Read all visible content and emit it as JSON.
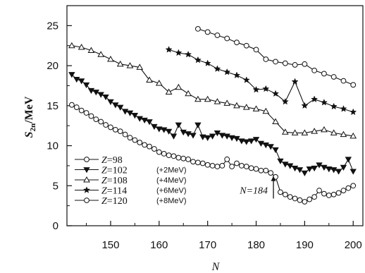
{
  "chart_data": {
    "type": "line",
    "xlabel": "N",
    "ylabel": "S2n/MeV",
    "xlim": [
      141,
      202
    ],
    "ylim": [
      0,
      27.5
    ],
    "x_ticks": [
      150,
      160,
      170,
      180,
      190,
      200
    ],
    "y_ticks": [
      0,
      5,
      10,
      15,
      20,
      25
    ],
    "grid": false,
    "legend_position": "bottom-left",
    "series": [
      {
        "name": "Z=98",
        "offset_label": "",
        "marker": "circle",
        "x": [
          142,
          143,
          144,
          145,
          146,
          147,
          148,
          149,
          150,
          151,
          152,
          153,
          154,
          155,
          156,
          157,
          158,
          159,
          160,
          161,
          162,
          163,
          164,
          165,
          166,
          167,
          168,
          169,
          170,
          171,
          172,
          173,
          174,
          175,
          176,
          177,
          178,
          179,
          180,
          181,
          182,
          183,
          184,
          185,
          186,
          187,
          188,
          189,
          190,
          191,
          192,
          193,
          194,
          195,
          196,
          197,
          198,
          199,
          200
        ],
        "y": [
          15.1,
          14.8,
          14.4,
          14.1,
          13.7,
          13.3,
          13.0,
          12.6,
          12.3,
          12.0,
          11.8,
          11.4,
          11.0,
          10.7,
          10.4,
          10.1,
          9.9,
          9.6,
          9.2,
          9.0,
          8.8,
          8.7,
          8.5,
          8.4,
          8.3,
          8.0,
          7.9,
          7.8,
          7.6,
          7.5,
          7.4,
          7.5,
          8.3,
          7.4,
          7.8,
          7.5,
          7.4,
          7.2,
          7.1,
          6.9,
          6.9,
          6.6,
          6.1,
          4.2,
          3.9,
          3.6,
          3.4,
          3.2,
          3.0,
          3.3,
          3.6,
          4.4,
          4.0,
          3.8,
          3.9,
          4.1,
          4.4,
          4.7,
          5.0
        ]
      },
      {
        "name": "Z=102",
        "offset_label": "(+2MeV)",
        "marker": "triangle-down",
        "x": [
          142,
          143,
          144,
          145,
          146,
          147,
          148,
          149,
          150,
          151,
          152,
          153,
          154,
          155,
          156,
          157,
          158,
          159,
          160,
          161,
          162,
          163,
          164,
          165,
          166,
          167,
          168,
          169,
          170,
          171,
          172,
          173,
          174,
          175,
          176,
          177,
          178,
          179,
          180,
          181,
          182,
          183,
          184,
          185,
          186,
          187,
          188,
          189,
          190,
          191,
          192,
          193,
          194,
          195,
          196,
          197,
          198,
          199,
          200
        ],
        "y": [
          18.9,
          18.3,
          18.1,
          17.6,
          16.9,
          16.7,
          16.4,
          16.1,
          15.5,
          15.1,
          14.8,
          14.3,
          14.1,
          13.8,
          13.4,
          13.2,
          13.0,
          12.4,
          12.1,
          12.0,
          11.8,
          11.2,
          12.6,
          11.7,
          11.5,
          11.3,
          12.6,
          11.1,
          11.0,
          11.2,
          11.6,
          11.3,
          11.2,
          11.0,
          10.9,
          10.6,
          10.5,
          10.6,
          10.8,
          10.3,
          10.1,
          9.9,
          9.5,
          8.1,
          7.7,
          7.5,
          7.2,
          7.0,
          6.6,
          7.1,
          7.2,
          7.6,
          7.3,
          7.1,
          7.0,
          6.8,
          7.3,
          8.3,
          6.8
        ]
      },
      {
        "name": "Z=108",
        "offset_label": "(+4MeV)",
        "marker": "triangle-up",
        "x": [
          142,
          144,
          146,
          148,
          150,
          152,
          154,
          156,
          158,
          160,
          162,
          164,
          166,
          168,
          170,
          172,
          174,
          176,
          178,
          180,
          182,
          184,
          186,
          188,
          190,
          192,
          194,
          196,
          198,
          200
        ],
        "y": [
          22.5,
          22.3,
          21.9,
          21.4,
          20.8,
          20.2,
          20.0,
          19.8,
          18.2,
          17.8,
          16.7,
          17.3,
          16.5,
          15.8,
          15.8,
          15.5,
          15.3,
          15.0,
          14.8,
          14.6,
          14.3,
          13.0,
          11.7,
          11.6,
          11.6,
          11.8,
          12.0,
          11.6,
          11.4,
          11.2
        ]
      },
      {
        "name": "Z=114",
        "offset_label": "(+6MeV)",
        "marker": "star",
        "x": [
          162,
          164,
          166,
          168,
          170,
          172,
          174,
          176,
          178,
          180,
          182,
          184,
          186,
          188,
          190,
          192,
          194,
          196,
          198,
          200
        ],
        "y": [
          22.0,
          21.6,
          21.4,
          20.7,
          20.3,
          19.6,
          19.2,
          18.8,
          18.2,
          17.0,
          17.1,
          16.5,
          15.5,
          18.0,
          15.0,
          15.8,
          15.4,
          14.9,
          14.6,
          14.2
        ]
      },
      {
        "name": "Z=120",
        "offset_label": "(+8MeV)",
        "marker": "circle",
        "x": [
          168,
          170,
          172,
          174,
          176,
          178,
          180,
          182,
          184,
          186,
          188,
          190,
          192,
          194,
          196,
          198,
          200
        ],
        "y": [
          24.6,
          24.2,
          23.8,
          23.4,
          22.9,
          22.5,
          22.0,
          20.8,
          20.5,
          20.3,
          20.1,
          20.2,
          19.4,
          19.0,
          18.6,
          18.1,
          17.6
        ]
      }
    ],
    "annotations": [
      {
        "text": "N=184",
        "x": 184,
        "arrow_from_y": 3.4,
        "arrow_to_y": 6.2
      }
    ]
  }
}
